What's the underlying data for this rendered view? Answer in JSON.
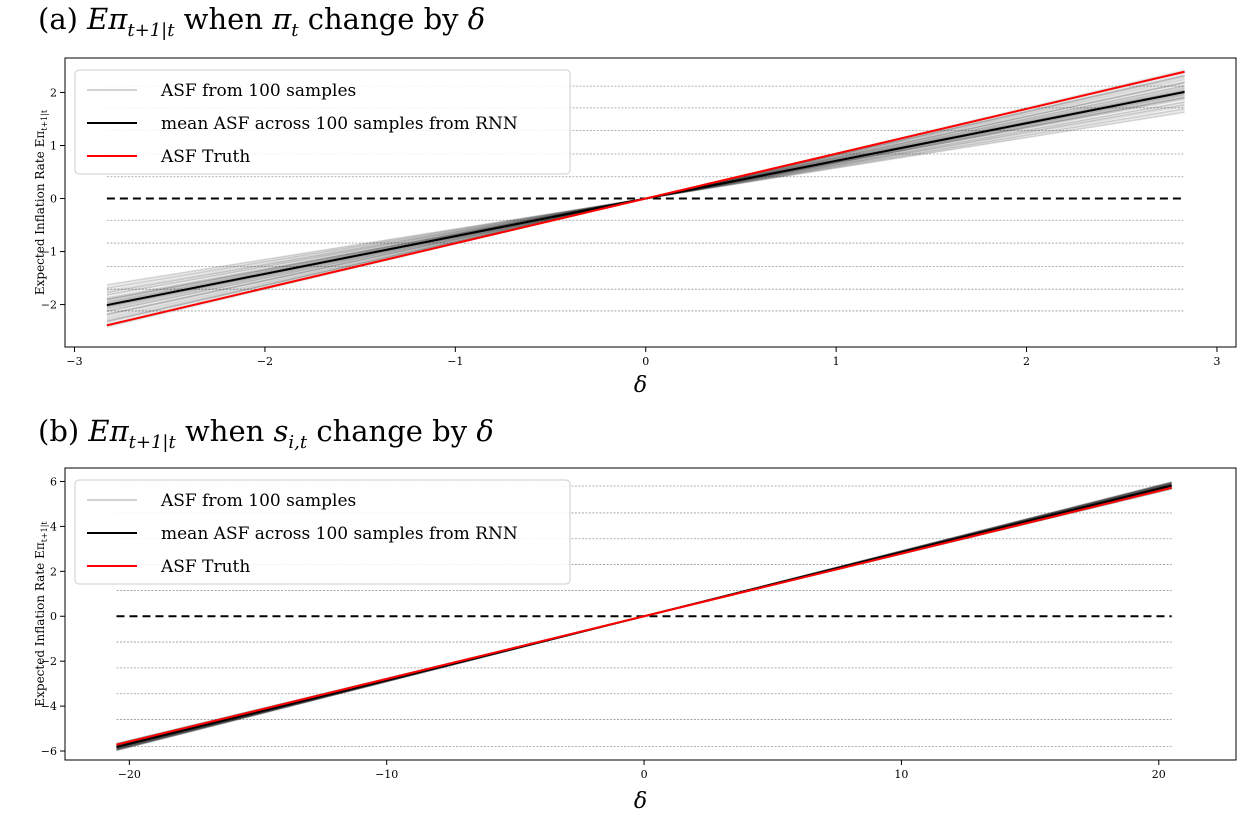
{
  "chart_data": [
    {
      "type": "line",
      "title_prefix": "(a) ",
      "title_expr": "Eπ",
      "title_sub": "t+1|t",
      "title_mid": " when ",
      "title_var": "π",
      "title_var_sub": "t",
      "title_suffix": " change by ",
      "title_delta": "δ",
      "xlabel": "δ",
      "ylabel": "Expected Inflation Rate Eπ",
      "ylabel_sub": "t+1|t",
      "xlim": [
        -3.05,
        3.1
      ],
      "ylim": [
        -2.8,
        2.65
      ],
      "x_ticks": [
        -3,
        -2,
        -1,
        0,
        1,
        2,
        3
      ],
      "y_ticks": [
        -2,
        -1,
        0,
        1,
        2
      ],
      "x_range": [
        -2.83,
        2.83
      ],
      "hlines": [
        -2.12,
        -1.71,
        -1.28,
        -0.84,
        -0.41,
        0.41,
        0.84,
        1.28,
        1.71,
        2.12
      ],
      "zero_line": 0,
      "series": [
        {
          "name": "ASF from 100 samples",
          "color": "#d3d3d3",
          "slope_min": 0.57,
          "slope_max": 0.86,
          "samples": 100
        },
        {
          "name": "mean ASF across 100 samples from RNN",
          "color": "#000000",
          "slope": 0.71
        },
        {
          "name": "ASF Truth",
          "color": "#ff0000",
          "slope": 0.845
        }
      ],
      "legend_position": "upper left"
    },
    {
      "type": "line",
      "title_prefix": "(b) ",
      "title_expr": "Eπ",
      "title_sub": "t+1|t",
      "title_mid": " when ",
      "title_var": "s",
      "title_var_sub": "i,t",
      "title_suffix": " change by ",
      "title_delta": "δ",
      "xlabel": "δ",
      "ylabel": "Expected Inflation Rate Eπ",
      "ylabel_sub": "t+1|t",
      "xlim": [
        -22.5,
        23.0
      ],
      "ylim": [
        -6.4,
        6.6
      ],
      "x_ticks": [
        -20,
        -10,
        0,
        10,
        20
      ],
      "y_ticks": [
        -6,
        -4,
        -2,
        0,
        2,
        4,
        6
      ],
      "x_range": [
        -20.5,
        20.5
      ],
      "hlines": [
        -5.8,
        -4.6,
        -3.45,
        -2.3,
        -1.15,
        1.15,
        2.3,
        3.45,
        4.6,
        5.8
      ],
      "zero_line": 0,
      "series": [
        {
          "name": "ASF from 100 samples",
          "color": "#d3d3d3",
          "slope_min": 0.276,
          "slope_max": 0.292,
          "samples": 100
        },
        {
          "name": "mean ASF across 100 samples from RNN",
          "color": "#000000",
          "slope": 0.284
        },
        {
          "name": "ASF Truth",
          "color": "#ff0000",
          "slope": 0.279
        }
      ],
      "legend_position": "upper left"
    }
  ]
}
